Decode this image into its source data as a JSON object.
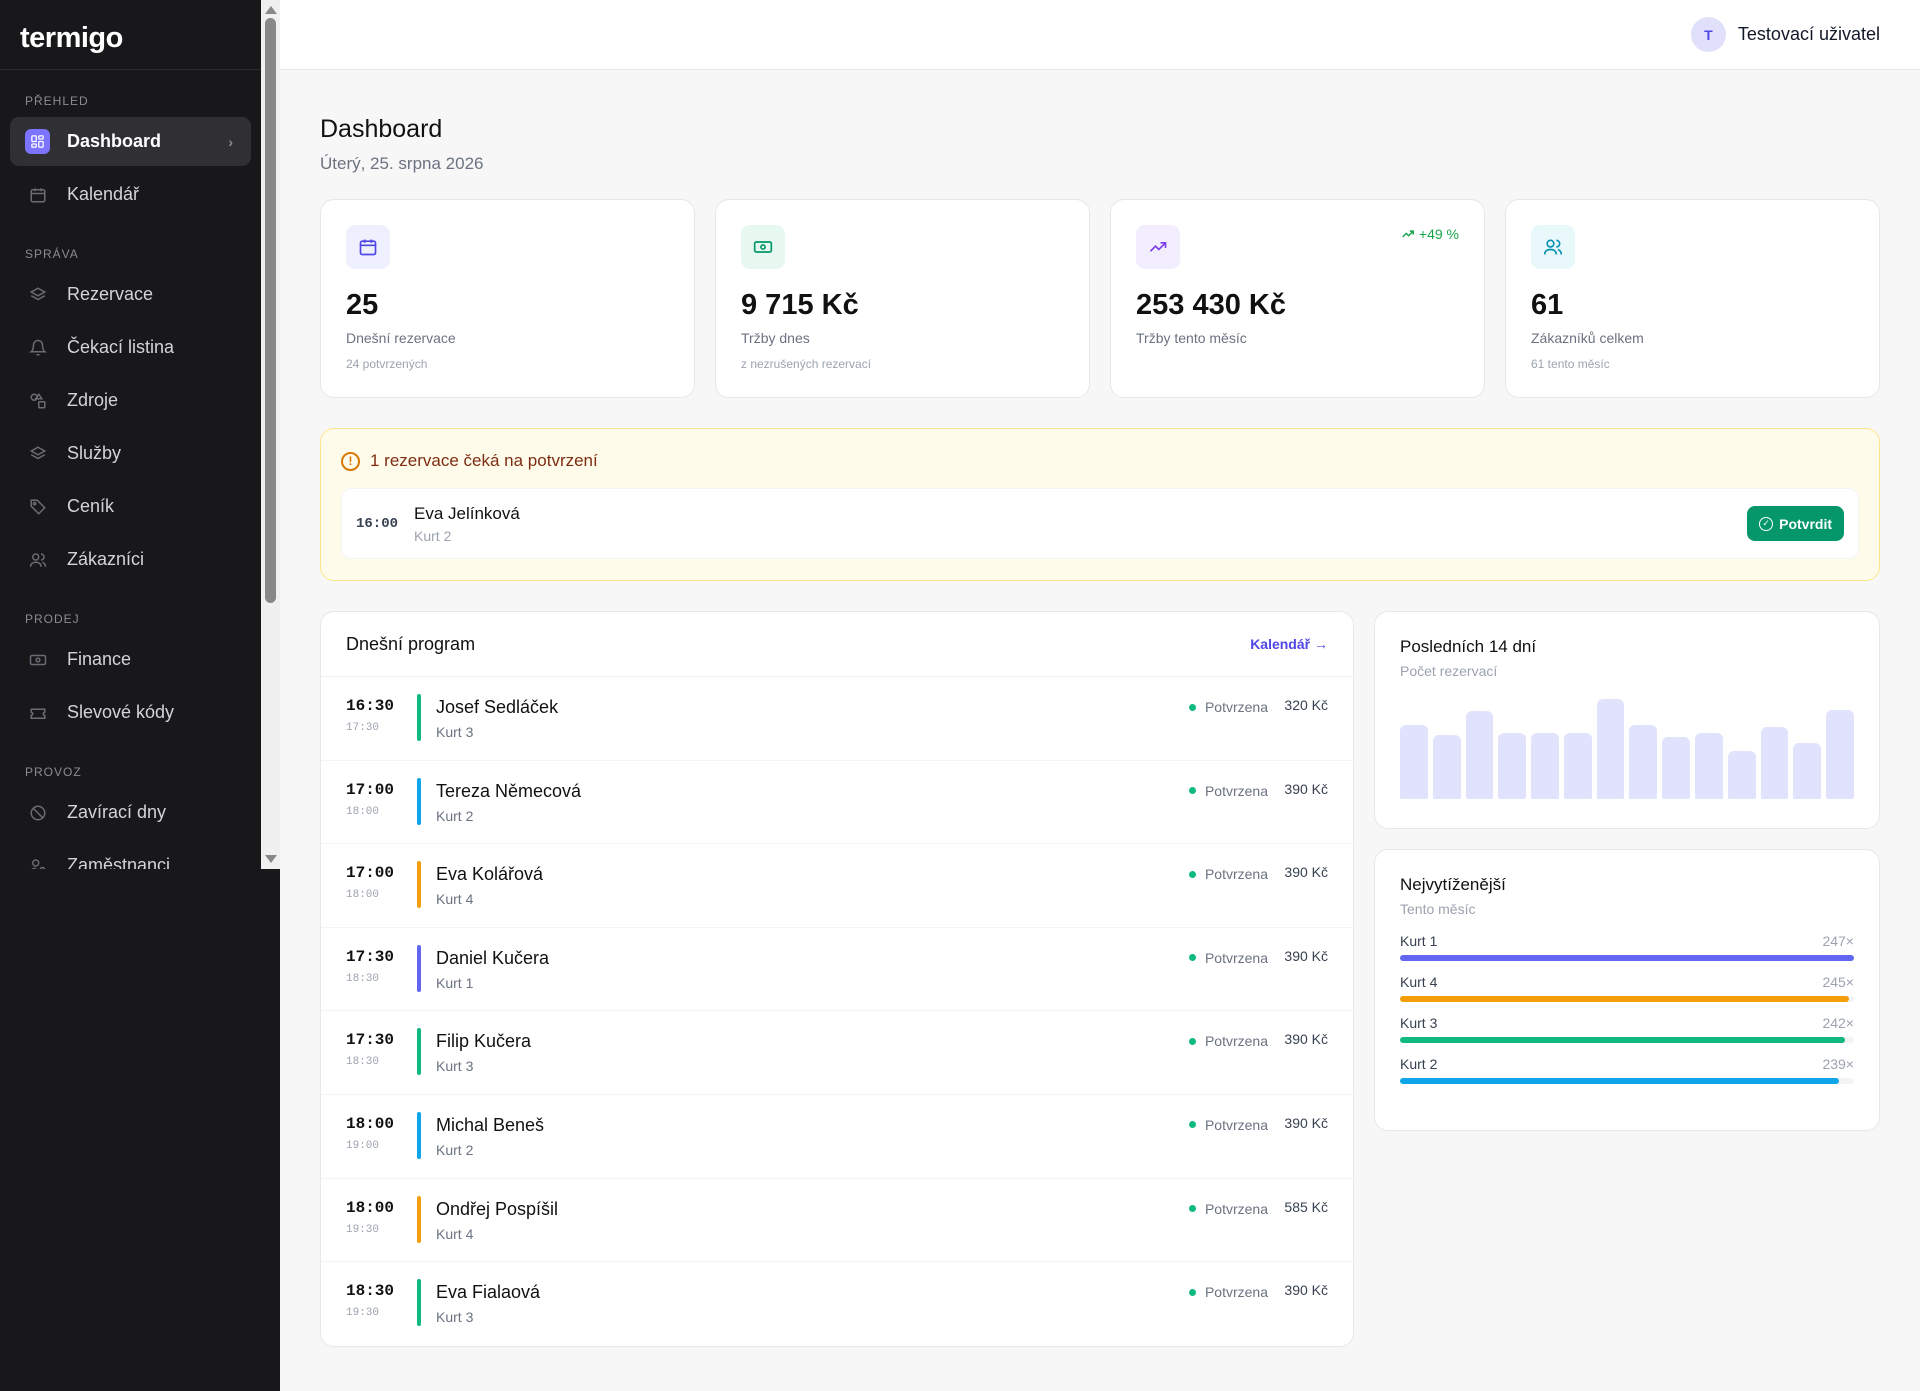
{
  "app": {
    "logo": "termigo"
  },
  "sidebar": {
    "sections": [
      {
        "heading": "Přehled",
        "items": [
          {
            "label": "Dashboard",
            "icon": "dashboard-icon",
            "active": true
          },
          {
            "label": "Kalendář",
            "icon": "calendar-icon"
          }
        ]
      },
      {
        "heading": "Správa",
        "items": [
          {
            "label": "Rezervace",
            "icon": "layers-icon"
          },
          {
            "label": "Čekací listina",
            "icon": "bell-icon"
          },
          {
            "label": "Zdroje",
            "icon": "shapes-icon"
          },
          {
            "label": "Služby",
            "icon": "layers-icon"
          },
          {
            "label": "Ceník",
            "icon": "tag-icon"
          },
          {
            "label": "Zákazníci",
            "icon": "users-icon"
          }
        ]
      },
      {
        "heading": "Prodej",
        "items": [
          {
            "label": "Finance",
            "icon": "banknote-icon"
          },
          {
            "label": "Slevové kódy",
            "icon": "ticket-icon"
          }
        ]
      },
      {
        "heading": "Provoz",
        "items": [
          {
            "label": "Zavírací dny",
            "icon": "ban-icon"
          },
          {
            "label": "Zaměstnanci",
            "icon": "user-cog-icon"
          }
        ]
      }
    ]
  },
  "topbar": {
    "avatar_initial": "T",
    "user_name": "Testovací uživatel"
  },
  "page": {
    "title": "Dashboard",
    "date": "Úterý, 25. srpna 2026"
  },
  "stats": [
    {
      "value": "25",
      "label": "Dnešní rezervace",
      "sub": "24 potvrzených",
      "icon": "calendar-icon",
      "icon_bg": "#eef0fe",
      "icon_color": "#4f46e5"
    },
    {
      "value": "9 715 Kč",
      "label": "Tržby dnes",
      "sub": "z nezrušených rezervací",
      "icon": "banknote-icon",
      "icon_bg": "#e7f8f0",
      "icon_color": "#059669"
    },
    {
      "value": "253 430 Kč",
      "label": "Tržby tento měsíc",
      "sub": "",
      "trend": "+49 %",
      "icon": "trending-up-icon",
      "icon_bg": "#f3eefe",
      "icon_color": "#7c3aed"
    },
    {
      "value": "61",
      "label": "Zákazníků celkem",
      "sub": "61 tento měsíc",
      "icon": "users-icon",
      "icon_bg": "#e8f8fb",
      "icon_color": "#0891b2"
    }
  ],
  "pending": {
    "title": "1 rezervace čeká na potvrzení",
    "time": "16:00",
    "name": "Eva Jelínková",
    "resource": "Kurt 2",
    "button": "Potvrdit"
  },
  "program": {
    "title": "Dnešní program",
    "link": "Kalendář",
    "rows": [
      {
        "start": "16:30",
        "end": "17:30",
        "name": "Josef Sedláček",
        "resource": "Kurt 3",
        "status": "Potvrzena",
        "price": "320 Kč",
        "color": "#10b981"
      },
      {
        "start": "17:00",
        "end": "18:00",
        "name": "Tereza Němecová",
        "resource": "Kurt 2",
        "status": "Potvrzena",
        "price": "390 Kč",
        "color": "#0ea5e9"
      },
      {
        "start": "17:00",
        "end": "18:00",
        "name": "Eva Kolářová",
        "resource": "Kurt 4",
        "status": "Potvrzena",
        "price": "390 Kč",
        "color": "#f59e0b"
      },
      {
        "start": "17:30",
        "end": "18:30",
        "name": "Daniel Kučera",
        "resource": "Kurt 1",
        "status": "Potvrzena",
        "price": "390 Kč",
        "color": "#6366f1"
      },
      {
        "start": "17:30",
        "end": "18:30",
        "name": "Filip Kučera",
        "resource": "Kurt 3",
        "status": "Potvrzena",
        "price": "390 Kč",
        "color": "#10b981"
      },
      {
        "start": "18:00",
        "end": "19:00",
        "name": "Michal Beneš",
        "resource": "Kurt 2",
        "status": "Potvrzena",
        "price": "390 Kč",
        "color": "#0ea5e9"
      },
      {
        "start": "18:00",
        "end": "19:30",
        "name": "Ondřej Pospíšil",
        "resource": "Kurt 4",
        "status": "Potvrzena",
        "price": "585 Kč",
        "color": "#f59e0b"
      },
      {
        "start": "18:30",
        "end": "19:30",
        "name": "Eva Fialaová",
        "resource": "Kurt 3",
        "status": "Potvrzena",
        "price": "390 Kč",
        "color": "#10b981"
      }
    ]
  },
  "last14": {
    "title": "Posledních 14 dní",
    "subtitle": "Počet rezervací",
    "chart_data": {
      "type": "bar",
      "values": [
        0.74,
        0.64,
        0.88,
        0.66,
        0.66,
        0.66,
        1.0,
        0.74,
        0.62,
        0.66,
        0.48,
        0.72,
        0.56,
        0.89
      ],
      "bar_color": "#e0e3fb"
    }
  },
  "top": {
    "title": "Nejvytíženější",
    "subtitle": "Tento měsíc",
    "items": [
      {
        "name": "Kurt 1",
        "count": "247×",
        "fraction": 1.0,
        "color": "#6366f1"
      },
      {
        "name": "Kurt 4",
        "count": "245×",
        "fraction": 0.99,
        "color": "#f59e0b"
      },
      {
        "name": "Kurt 3",
        "count": "242×",
        "fraction": 0.98,
        "color": "#10b981"
      },
      {
        "name": "Kurt 2",
        "count": "239×",
        "fraction": 0.967,
        "color": "#0ea5e9"
      }
    ]
  }
}
